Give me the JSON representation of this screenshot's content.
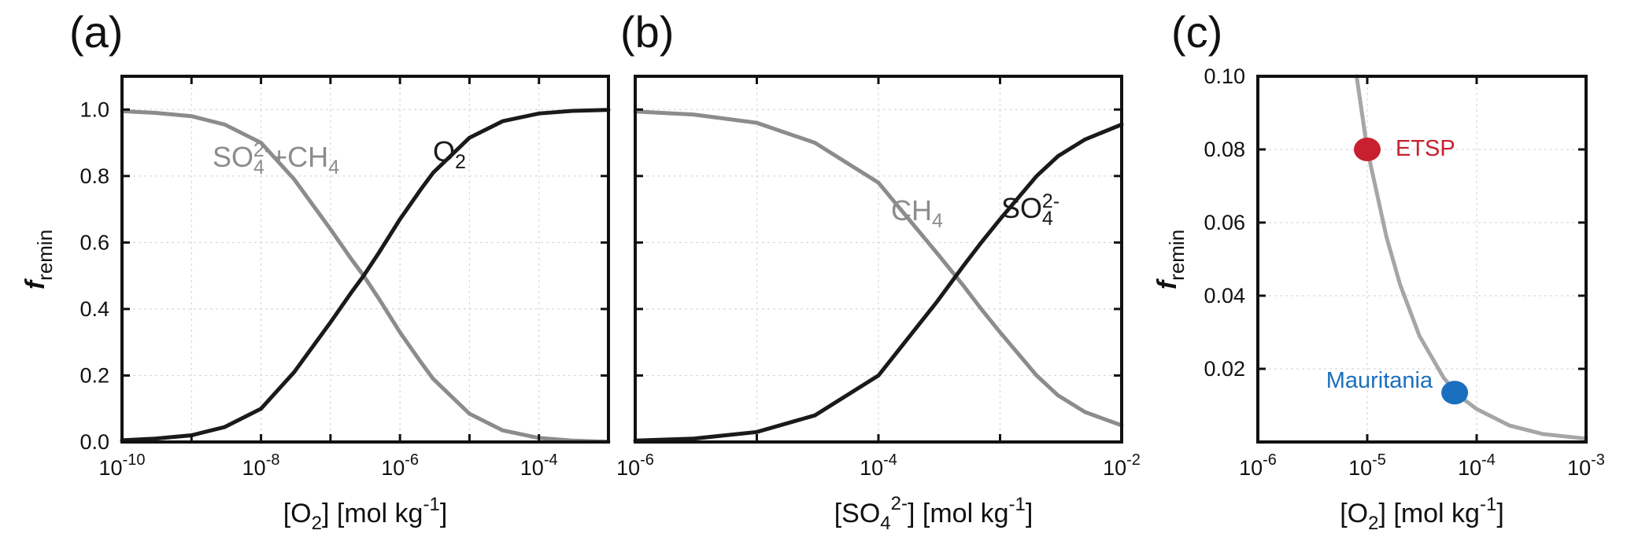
{
  "figure": {
    "ylabel_main": "f",
    "ylabel_sub": "remin"
  },
  "chart_data": [
    {
      "panel": "(a)",
      "type": "line",
      "x_scale": "log",
      "xlim": [
        1e-10,
        0.001
      ],
      "ylim": [
        0,
        1.1
      ],
      "grid": true,
      "x_ticks": [
        1e-10,
        1e-08,
        1e-06,
        0.0001
      ],
      "x_tick_labels": [
        {
          "base": "10",
          "exp": "-10"
        },
        {
          "base": "10",
          "exp": "-8"
        },
        {
          "base": "10",
          "exp": "-6"
        },
        {
          "base": "10",
          "exp": "-4"
        }
      ],
      "y_ticks": [
        0,
        0.2,
        0.4,
        0.6,
        0.8,
        1.0
      ],
      "y_tick_labels": [
        "0.0",
        "0.2",
        "0.4",
        "0.6",
        "0.8",
        "1.0"
      ],
      "xlabel": {
        "pre": "[O",
        "sub": "2",
        "post": "] [mol kg",
        "sup": "-1",
        "end": "]"
      },
      "series": [
        {
          "name": {
            "pre": "SO",
            "sub": "4",
            "sup": "2-",
            "post": "+CH",
            "sub2": "4"
          },
          "color": "#8c8c8c",
          "x": [
            1e-10,
            3e-10,
            1e-09,
            3e-09,
            1e-08,
            3e-08,
            1e-07,
            2e-07,
            3e-07,
            5e-07,
            1e-06,
            2e-06,
            3e-06,
            1e-05,
            3e-05,
            0.0001,
            0.0003,
            0.001
          ],
          "y": [
            0.995,
            0.99,
            0.98,
            0.955,
            0.9,
            0.79,
            0.64,
            0.55,
            0.5,
            0.43,
            0.33,
            0.24,
            0.19,
            0.085,
            0.035,
            0.012,
            0.004,
            0.001
          ]
        },
        {
          "name": {
            "pre": "O",
            "sub": "2"
          },
          "color": "#1a1a1a",
          "x": [
            1e-10,
            3e-10,
            1e-09,
            3e-09,
            1e-08,
            3e-08,
            1e-07,
            2e-07,
            3e-07,
            5e-07,
            1e-06,
            2e-06,
            3e-06,
            1e-05,
            3e-05,
            0.0001,
            0.0003,
            0.001
          ],
          "y": [
            0.005,
            0.01,
            0.02,
            0.045,
            0.1,
            0.21,
            0.36,
            0.45,
            0.5,
            0.57,
            0.67,
            0.76,
            0.81,
            0.915,
            0.965,
            0.988,
            0.996,
            0.999
          ]
        }
      ]
    },
    {
      "panel": "(b)",
      "type": "line",
      "x_scale": "log",
      "xlim": [
        1e-06,
        0.01
      ],
      "ylim": [
        0,
        1.1
      ],
      "grid": true,
      "x_ticks": [
        1e-06,
        0.0001,
        0.01
      ],
      "x_tick_labels": [
        {
          "base": "10",
          "exp": "-6"
        },
        {
          "base": "10",
          "exp": "-4"
        },
        {
          "base": "10",
          "exp": "-2"
        }
      ],
      "y_ticks": [
        0,
        0.2,
        0.4,
        0.6,
        0.8,
        1.0
      ],
      "xlabel": {
        "pre": "[SO",
        "sub": "4",
        "sup": "2-",
        "post": "] [mol kg",
        "sup2": "-1",
        "end": "]"
      },
      "series": [
        {
          "name": {
            "pre": "CH",
            "sub": "4"
          },
          "color": "#8c8c8c",
          "x": [
            1e-06,
            3e-06,
            1e-05,
            3e-05,
            0.0001,
            0.0003,
            0.0005,
            0.0007,
            0.001,
            0.002,
            0.003,
            0.005,
            0.01
          ],
          "y": [
            0.994,
            0.985,
            0.96,
            0.9,
            0.78,
            0.57,
            0.47,
            0.4,
            0.33,
            0.2,
            0.14,
            0.09,
            0.05
          ]
        },
        {
          "name": {
            "pre": "SO",
            "sub": "4",
            "sup": "2-"
          },
          "color": "#1a1a1a",
          "x": [
            1e-06,
            3e-06,
            1e-05,
            3e-05,
            0.0001,
            0.0003,
            0.0005,
            0.0007,
            0.001,
            0.002,
            0.003,
            0.005,
            0.01
          ],
          "y": [
            0.004,
            0.01,
            0.03,
            0.08,
            0.2,
            0.42,
            0.53,
            0.6,
            0.67,
            0.8,
            0.86,
            0.91,
            0.955
          ]
        }
      ]
    },
    {
      "panel": "(c)",
      "type": "line",
      "x_scale": "log",
      "xlim": [
        1e-06,
        0.001
      ],
      "ylim": [
        0,
        0.1
      ],
      "grid": true,
      "x_ticks": [
        1e-06,
        1e-05,
        0.0001,
        0.001
      ],
      "x_tick_labels": [
        {
          "base": "10",
          "exp": "-6"
        },
        {
          "base": "10",
          "exp": "-5"
        },
        {
          "base": "10",
          "exp": "-4"
        },
        {
          "base": "10",
          "exp": "-3"
        }
      ],
      "y_ticks": [
        0.02,
        0.04,
        0.06,
        0.08,
        0.1
      ],
      "y_tick_labels": [
        "0.02",
        "0.04",
        "0.06",
        "0.08",
        "0.10"
      ],
      "xlabel": {
        "pre": "[O",
        "sub": "2",
        "post": "] [mol kg",
        "sup": "-1",
        "end": "]"
      },
      "series": [
        {
          "name": "",
          "color": "#a6a6a6",
          "x": [
            8e-06,
            1e-05,
            1.5e-05,
            2e-05,
            3e-05,
            5e-05,
            7e-05,
            0.0001,
            0.0002,
            0.0004,
            0.001
          ],
          "y": [
            0.1,
            0.08,
            0.056,
            0.043,
            0.029,
            0.0175,
            0.0125,
            0.009,
            0.0045,
            0.0022,
            0.0009
          ]
        }
      ],
      "points": [
        {
          "label": "ETSP",
          "x": 1e-05,
          "y": 0.08,
          "color": "#c8202f"
        },
        {
          "label": "Mauritania",
          "x": 6.3e-05,
          "y": 0.0135,
          "color": "#1a6fbe"
        }
      ]
    }
  ]
}
